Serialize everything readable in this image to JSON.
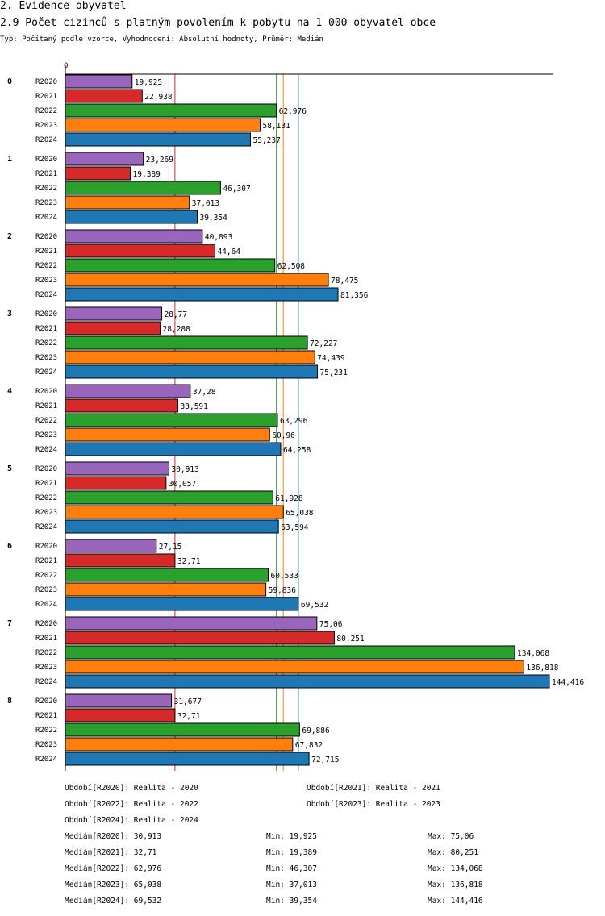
{
  "header": {
    "section": "2. Evidence obyvatel",
    "title": "2.9 Počet cizinců s platným povolením k pobytu na 1 000 obyvatel obce",
    "subtitle": "Typ: Počítaný podle vzorce, Vyhodnocení: Absolutní hodnoty, Průměr: Medián"
  },
  "chart_data": {
    "type": "bar",
    "orientation": "horizontal",
    "axis_zero_label": "0",
    "xlim": [
      0,
      144.416
    ],
    "categories": [
      "0",
      "1",
      "2",
      "3",
      "4",
      "5",
      "6",
      "7",
      "8"
    ],
    "series": [
      {
        "name": "R2020",
        "color": "#9966bb",
        "values": [
          19.925,
          23.269,
          40.893,
          28.77,
          37.28,
          30.913,
          27.15,
          75.06,
          31.677
        ],
        "labels": [
          "19,925",
          "23,269",
          "40,893",
          "28,77",
          "37,28",
          "30,913",
          "27,15",
          "75,06",
          "31,677"
        ]
      },
      {
        "name": "R2021",
        "color": "#d62a2a",
        "values": [
          22.938,
          19.389,
          44.64,
          28.288,
          33.591,
          30.057,
          32.71,
          80.251,
          32.71
        ],
        "labels": [
          "22,938",
          "19,389",
          "44,64",
          "28,288",
          "33,591",
          "30,057",
          "32,71",
          "80,251",
          "32,71"
        ]
      },
      {
        "name": "R2022",
        "color": "#2ca02c",
        "values": [
          62.976,
          46.307,
          62.508,
          72.227,
          63.296,
          61.928,
          60.533,
          134.068,
          69.886
        ],
        "labels": [
          "62,976",
          "46,307",
          "62,508",
          "72,227",
          "63,296",
          "61,928",
          "60,533",
          "134,068",
          "69,886"
        ]
      },
      {
        "name": "R2023",
        "color": "#ff7f0e",
        "values": [
          58.131,
          37.013,
          78.475,
          74.439,
          60.96,
          65.038,
          59.836,
          136.818,
          67.832
        ],
        "labels": [
          "58,131",
          "37,013",
          "78,475",
          "74,439",
          "60,96",
          "65,038",
          "59,836",
          "136,818",
          "67,832"
        ]
      },
      {
        "name": "R2024",
        "color": "#1f77b4",
        "values": [
          55.237,
          39.354,
          81.356,
          75.231,
          64.258,
          63.594,
          69.532,
          144.416,
          72.715
        ],
        "labels": [
          "55,237",
          "39,354",
          "81,356",
          "75,231",
          "64,258",
          "63,594",
          "69,532",
          "144,416",
          "72,715"
        ]
      }
    ],
    "median_lines": [
      {
        "series": "R2020",
        "value": 30.913
      },
      {
        "series": "R2021",
        "value": 32.71
      },
      {
        "series": "R2022",
        "value": 62.976
      },
      {
        "series": "R2023",
        "value": 65.038
      },
      {
        "series": "R2024",
        "value": 69.532
      }
    ]
  },
  "legend": {
    "periods": [
      "Období[R2020]: Realita - 2020",
      "Období[R2021]: Realita - 2021",
      "Období[R2022]: Realita - 2022",
      "Období[R2023]: Realita - 2023",
      "Období[R2024]: Realita - 2024"
    ],
    "stats": [
      {
        "median": "Medián[R2020]: 30,913",
        "min": "Min: 19,925",
        "max": "Max: 75,06"
      },
      {
        "median": "Medián[R2021]: 32,71",
        "min": "Min: 19,389",
        "max": "Max: 80,251"
      },
      {
        "median": "Medián[R2022]: 62,976",
        "min": "Min: 46,307",
        "max": "Max: 134,068"
      },
      {
        "median": "Medián[R2023]: 65,038",
        "min": "Min: 37,013",
        "max": "Max: 136,818"
      },
      {
        "median": "Medián[R2024]: 69,532",
        "min": "Min: 39,354",
        "max": "Max: 144,416"
      }
    ]
  }
}
